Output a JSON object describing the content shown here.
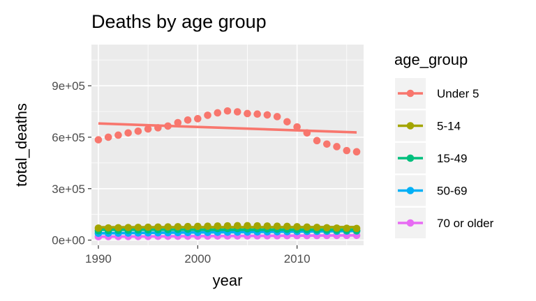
{
  "chart_data": {
    "type": "scatter",
    "title": "Deaths by age group",
    "xlabel": "year",
    "ylabel": "total_deaths",
    "xlim": [
      1989.3,
      2016.7
    ],
    "ylim": [
      -30000,
      1140000
    ],
    "x_ticks": [
      1990,
      2000,
      2010
    ],
    "x_tick_labels": [
      "1990",
      "2000",
      "2010"
    ],
    "y_ticks": [
      0,
      300000,
      600000,
      900000
    ],
    "y_tick_labels": [
      "0e+00",
      "3e+05",
      "6e+05",
      "9e+05"
    ],
    "grid": true,
    "legend_title": "age_group",
    "legend_position": "right",
    "trend_lines": "linear",
    "x": [
      1990,
      1991,
      1992,
      1993,
      1994,
      1995,
      1996,
      1997,
      1998,
      1999,
      2000,
      2001,
      2002,
      2003,
      2004,
      2005,
      2006,
      2007,
      2008,
      2009,
      2010,
      2011,
      2012,
      2013,
      2014,
      2015,
      2016
    ],
    "series": [
      {
        "name": "Under 5",
        "color": "#F8766D",
        "values": [
          585000,
          600000,
          612000,
          625000,
          635000,
          648000,
          655000,
          665000,
          685000,
          700000,
          708000,
          728000,
          742000,
          753000,
          748000,
          738000,
          735000,
          730000,
          720000,
          690000,
          660000,
          625000,
          580000,
          560000,
          545000,
          522000,
          515000
        ],
        "fit": [
          680000,
          628000
        ]
      },
      {
        "name": "5-14",
        "color": "#A3A500",
        "values": [
          70000,
          71000,
          72000,
          73000,
          74000,
          75000,
          76000,
          77000,
          78000,
          79000,
          80000,
          81000,
          82000,
          83000,
          84000,
          84000,
          83000,
          82000,
          81000,
          80000,
          78000,
          76000,
          74000,
          72000,
          70000,
          69000,
          68000
        ],
        "fit": [
          75000,
          76000
        ]
      },
      {
        "name": "15-49",
        "color": "#00BF7D",
        "values": [
          55000,
          56000,
          57000,
          58000,
          59000,
          60000,
          61000,
          62000,
          63000,
          64000,
          65000,
          66000,
          67000,
          67000,
          67000,
          66000,
          66000,
          65000,
          64000,
          63000,
          62000,
          61000,
          60000,
          59000,
          58000,
          57000,
          56000
        ],
        "fit": [
          60000,
          61000
        ]
      },
      {
        "name": "50-69",
        "color": "#00B0F6",
        "values": [
          40000,
          40500,
          41000,
          41500,
          42000,
          42500,
          43000,
          43500,
          44000,
          44500,
          45000,
          45500,
          46000,
          46500,
          47000,
          47500,
          48000,
          48500,
          49000,
          49500,
          50000,
          50500,
          51000,
          51500,
          52000,
          52500,
          53000
        ],
        "fit": [
          40000,
          53000
        ]
      },
      {
        "name": "70 or older",
        "color": "#E76BF3",
        "values": [
          20000,
          20300,
          20600,
          20900,
          21200,
          21500,
          21800,
          22100,
          22400,
          22700,
          23000,
          23300,
          23600,
          23900,
          24200,
          24500,
          24800,
          25100,
          25400,
          25700,
          26000,
          26300,
          26600,
          26900,
          27200,
          27500,
          27800
        ],
        "fit": [
          20000,
          27800
        ]
      }
    ]
  }
}
